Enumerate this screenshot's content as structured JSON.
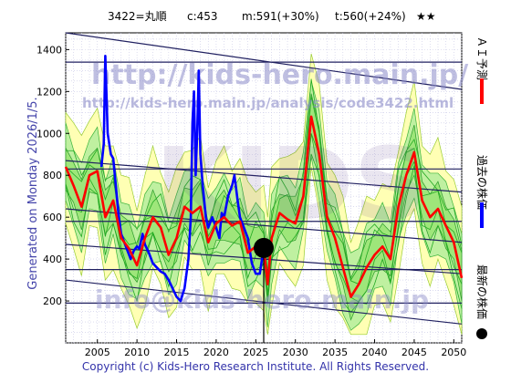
{
  "header": {
    "code_name": "3422=丸順",
    "current": "c:453",
    "max_info": "m:591(+30%)",
    "target_info": "t:560(+24%)",
    "stars": "★★"
  },
  "side_text": "Generated on Monday 2026/1/5.",
  "copyright": "Copyright (c) Kids-Hero Research Institute. All Rights Reserved.",
  "watermarks": {
    "site": "http://kids-hero.main.jp/",
    "analysis": "http://kids-hero.main.jp/analysis/code3422.html",
    "big": "KIDS",
    "email": "info@kids-hero.main.jp"
  },
  "legend": [
    {
      "label": "ＡＩ予測",
      "color": "#ff0000",
      "kind": "line"
    },
    {
      "label": "過去の株価",
      "color": "#0000ff",
      "kind": "line"
    },
    {
      "label": "最新の株価",
      "color": "#000000",
      "kind": "dot"
    }
  ],
  "chart_data": {
    "type": "line",
    "x_range": [
      2001,
      2051
    ],
    "y_range": [
      0,
      1480
    ],
    "x_ticks": [
      2005,
      2010,
      2015,
      2020,
      2025,
      2030,
      2035,
      2040,
      2045,
      2050
    ],
    "y_ticks": [
      200,
      400,
      600,
      800,
      1000,
      1200,
      1400
    ],
    "grid": true,
    "latest": {
      "x": 2026.0,
      "y": 453
    },
    "series": [
      {
        "name": "過去の株価",
        "color": "#0000ff",
        "points": [
          [
            2005.5,
            840
          ],
          [
            2005.8,
            950
          ],
          [
            2006.0,
            1370
          ],
          [
            2006.3,
            1000
          ],
          [
            2006.7,
            900
          ],
          [
            2007.0,
            880
          ],
          [
            2007.3,
            760
          ],
          [
            2007.7,
            600
          ],
          [
            2008.0,
            520
          ],
          [
            2008.4,
            480
          ],
          [
            2008.8,
            440
          ],
          [
            2009.2,
            400
          ],
          [
            2009.6,
            440
          ],
          [
            2010.0,
            460
          ],
          [
            2010.3,
            450
          ],
          [
            2010.7,
            520
          ],
          [
            2011.0,
            470
          ],
          [
            2011.5,
            430
          ],
          [
            2012.0,
            380
          ],
          [
            2012.5,
            360
          ],
          [
            2013.0,
            340
          ],
          [
            2013.5,
            330
          ],
          [
            2014.0,
            300
          ],
          [
            2014.5,
            260
          ],
          [
            2015.0,
            220
          ],
          [
            2015.5,
            200
          ],
          [
            2016.0,
            260
          ],
          [
            2016.5,
            400
          ],
          [
            2016.8,
            600
          ],
          [
            2017.0,
            1050
          ],
          [
            2017.2,
            1200
          ],
          [
            2017.4,
            800
          ],
          [
            2017.6,
            1000
          ],
          [
            2017.8,
            1300
          ],
          [
            2018.0,
            900
          ],
          [
            2018.3,
            750
          ],
          [
            2018.7,
            600
          ],
          [
            2019.0,
            550
          ],
          [
            2019.5,
            600
          ],
          [
            2020.0,
            550
          ],
          [
            2020.4,
            500
          ],
          [
            2020.7,
            620
          ],
          [
            2021.0,
            600
          ],
          [
            2021.5,
            700
          ],
          [
            2022.0,
            750
          ],
          [
            2022.3,
            800
          ],
          [
            2022.7,
            680
          ],
          [
            2023.0,
            600
          ],
          [
            2023.5,
            550
          ],
          [
            2024.0,
            500
          ],
          [
            2024.5,
            380
          ],
          [
            2025.0,
            330
          ],
          [
            2025.5,
            330
          ],
          [
            2026.0,
            453
          ]
        ]
      },
      {
        "name": "ＡＩ予測",
        "color": "#ff0000",
        "points": [
          [
            2001,
            840
          ],
          [
            2002,
            750
          ],
          [
            2003,
            650
          ],
          [
            2004,
            800
          ],
          [
            2005,
            820
          ],
          [
            2006,
            600
          ],
          [
            2007,
            680
          ],
          [
            2008,
            500
          ],
          [
            2009,
            450
          ],
          [
            2010,
            370
          ],
          [
            2011,
            500
          ],
          [
            2012,
            600
          ],
          [
            2013,
            550
          ],
          [
            2014,
            420
          ],
          [
            2015,
            500
          ],
          [
            2016,
            650
          ],
          [
            2017,
            620
          ],
          [
            2018,
            650
          ],
          [
            2019,
            480
          ],
          [
            2020,
            570
          ],
          [
            2021,
            600
          ],
          [
            2022,
            560
          ],
          [
            2023,
            580
          ],
          [
            2024,
            430
          ],
          [
            2025,
            460
          ],
          [
            2026.0,
            453
          ],
          [
            2026.5,
            280
          ],
          [
            2027,
            500
          ],
          [
            2028,
            620
          ],
          [
            2029,
            590
          ],
          [
            2030,
            570
          ],
          [
            2031,
            700
          ],
          [
            2032,
            1080
          ],
          [
            2033,
            900
          ],
          [
            2034,
            600
          ],
          [
            2035,
            500
          ],
          [
            2036,
            360
          ],
          [
            2037,
            220
          ],
          [
            2038,
            280
          ],
          [
            2039,
            360
          ],
          [
            2040,
            420
          ],
          [
            2041,
            460
          ],
          [
            2042,
            400
          ],
          [
            2043,
            650
          ],
          [
            2044,
            800
          ],
          [
            2045,
            910
          ],
          [
            2046,
            680
          ],
          [
            2047,
            600
          ],
          [
            2048,
            640
          ],
          [
            2049,
            560
          ],
          [
            2050,
            480
          ],
          [
            2051,
            310
          ]
        ]
      }
    ]
  }
}
